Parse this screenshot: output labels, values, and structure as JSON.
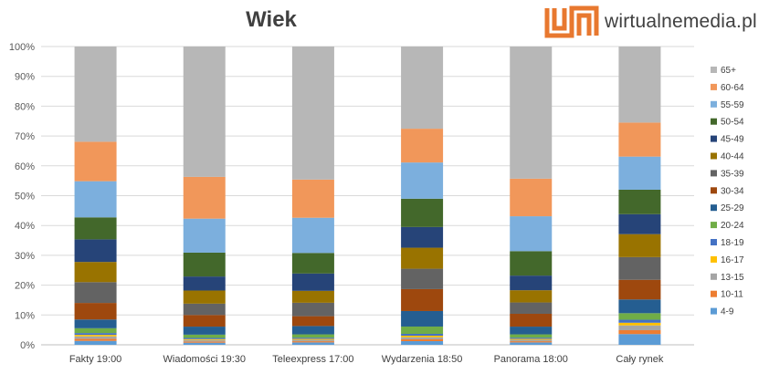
{
  "logo": {
    "icon": "wirtualnemedia-logo-icon",
    "text": "wirtualnemedia.pl",
    "color": "#e8782f"
  },
  "chart_data": {
    "type": "bar",
    "stacked": true,
    "percent": true,
    "title": "Wiek",
    "xlabel": "",
    "ylabel": "",
    "ylim": [
      0,
      100
    ],
    "yticks": [
      "0%",
      "10%",
      "20%",
      "30%",
      "40%",
      "50%",
      "60%",
      "70%",
      "80%",
      "90%",
      "100%"
    ],
    "grid": true,
    "legend_position": "right",
    "categories": [
      "Fakty 19:00",
      "Wiadomości 19:30",
      "Teleexpress 17:00",
      "Wydarzenia 18:50",
      "Panorama 18:00",
      "Cały rynek"
    ],
    "series": [
      {
        "name": "4-9",
        "color": "#5b9bd5",
        "values": [
          1.3,
          0.7,
          0.8,
          1.2,
          0.8,
          3.6
        ]
      },
      {
        "name": "10-11",
        "color": "#ed7d31",
        "values": [
          0.7,
          0.4,
          0.4,
          0.6,
          0.4,
          1.3
        ]
      },
      {
        "name": "13-15",
        "color": "#a5a5a5",
        "values": [
          0.8,
          0.5,
          0.5,
          0.7,
          0.5,
          1.6
        ]
      },
      {
        "name": "16-17",
        "color": "#ffc000",
        "values": [
          0.5,
          0.3,
          0.3,
          0.5,
          0.3,
          0.9
        ]
      },
      {
        "name": "18-19",
        "color": "#4472c4",
        "values": [
          0.6,
          0.4,
          0.4,
          0.6,
          0.4,
          1.0
        ]
      },
      {
        "name": "20-24",
        "color": "#70ad47",
        "values": [
          1.6,
          1.1,
          1.1,
          2.4,
          1.1,
          2.2
        ]
      },
      {
        "name": "25-29",
        "color": "#255e91",
        "values": [
          2.9,
          2.7,
          2.8,
          5.1,
          2.6,
          4.6
        ]
      },
      {
        "name": "30-34",
        "color": "#9e480e",
        "values": [
          5.5,
          3.9,
          3.3,
          7.2,
          4.3,
          6.6
        ]
      },
      {
        "name": "35-39",
        "color": "#636363",
        "values": [
          6.9,
          3.8,
          4.5,
          6.7,
          3.8,
          7.6
        ]
      },
      {
        "name": "40-44",
        "color": "#997300",
        "values": [
          6.7,
          4.4,
          4.0,
          6.9,
          4.1,
          7.7
        ]
      },
      {
        "name": "45-49",
        "color": "#264478",
        "values": [
          7.5,
          4.7,
          5.8,
          6.8,
          4.9,
          6.7
        ]
      },
      {
        "name": "50-54",
        "color": "#43682b",
        "values": [
          7.3,
          8.0,
          6.9,
          9.3,
          8.2,
          8.2
        ]
      },
      {
        "name": "55-59",
        "color": "#7cafdd",
        "values": [
          12.0,
          11.4,
          11.8,
          11.9,
          11.7,
          11.1
        ]
      },
      {
        "name": "60-64",
        "color": "#f1975a",
        "values": [
          13.1,
          14.0,
          12.8,
          11.1,
          12.6,
          11.4
        ]
      },
      {
        "name": "65+",
        "color": "#b7b7b7",
        "values": [
          31.6,
          43.7,
          44.6,
          27.0,
          44.3,
          25.5
        ]
      }
    ]
  }
}
